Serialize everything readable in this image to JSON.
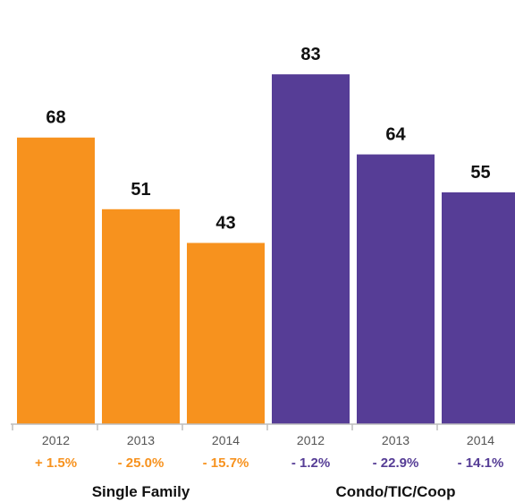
{
  "chart_data": {
    "type": "bar",
    "title": "",
    "xlabel": "",
    "ylabel": "",
    "ylim": [
      0,
      90
    ],
    "grid": false,
    "groups": [
      {
        "name": "Single Family",
        "color": "#F7921E",
        "bars": [
          {
            "year": "2012",
            "value": 68,
            "value_label": "68",
            "change": "+ 1.5%"
          },
          {
            "year": "2013",
            "value": 51,
            "value_label": "51",
            "change": "- 25.0%"
          },
          {
            "year": "2014",
            "value": 43,
            "value_label": "43",
            "change": "- 15.7%"
          }
        ]
      },
      {
        "name": "Condo/TIC/Coop",
        "color": "#563D96",
        "bars": [
          {
            "year": "2012",
            "value": 83,
            "value_label": "83",
            "change": "- 1.2%"
          },
          {
            "year": "2013",
            "value": 64,
            "value_label": "64",
            "change": "- 22.9%"
          },
          {
            "year": "2014",
            "value": 55,
            "value_label": "55",
            "change": "- 14.1%"
          }
        ]
      }
    ]
  }
}
